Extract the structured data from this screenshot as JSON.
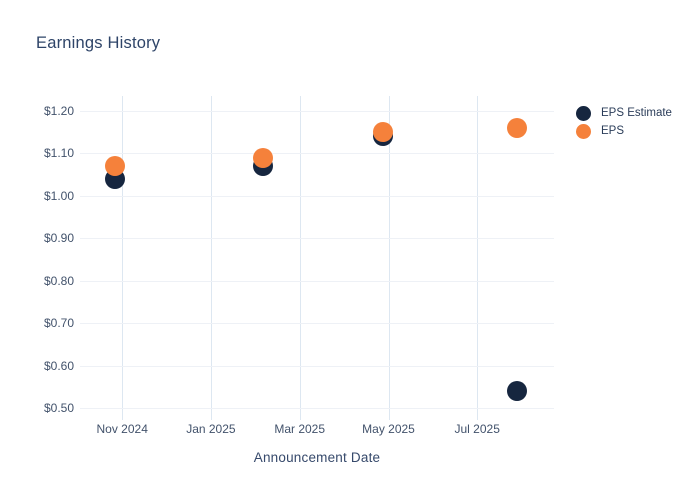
{
  "colors": {
    "background": "#ffffff",
    "title_text": "#2e4468",
    "tick_label_text": "#42526b",
    "axis_title_text": "#36496b",
    "grid_horizontal": "#eef1f6",
    "grid_vertical": "#dde7f1",
    "eps_estimate_marker": "#16263f",
    "eps_marker": "#f5813b"
  },
  "chart_data": {
    "type": "scatter",
    "title": "Earnings History",
    "xlabel": "Announcement Date",
    "ylabel": "",
    "grid": true,
    "legend_position": "outside-top-right",
    "xlim_months": [
      -0.95,
      9.73
    ],
    "ylim": [
      0.472,
      1.235
    ],
    "x_ticks": [
      {
        "label": "Nov 2024",
        "month": 0
      },
      {
        "label": "Jan 2025",
        "month": 2
      },
      {
        "label": "Mar 2025",
        "month": 4
      },
      {
        "label": "May 2025",
        "month": 6
      },
      {
        "label": "Jul 2025",
        "month": 8
      }
    ],
    "y_ticks": [
      {
        "label": "$1.20",
        "value": 1.2
      },
      {
        "label": "$1.10",
        "value": 1.1
      },
      {
        "label": "$1.00",
        "value": 1.0
      },
      {
        "label": "$0.90",
        "value": 0.9
      },
      {
        "label": "$0.80",
        "value": 0.8
      },
      {
        "label": "$0.70",
        "value": 0.7
      },
      {
        "label": "$0.60",
        "value": 0.6
      },
      {
        "label": "$0.50",
        "value": 0.5
      }
    ],
    "series": [
      {
        "name": "EPS Estimate",
        "color": "#16263f",
        "points": [
          {
            "x_months": -0.16,
            "approx_date": "2024-10-28",
            "value": 1.04
          },
          {
            "x_months": 3.18,
            "approx_date": "2025-02-05",
            "value": 1.07
          },
          {
            "x_months": 5.88,
            "approx_date": "2025-04-29",
            "value": 1.14
          },
          {
            "x_months": 8.9,
            "approx_date": "2025-07-29",
            "value": 0.54
          }
        ]
      },
      {
        "name": "EPS",
        "color": "#f5813b",
        "points": [
          {
            "x_months": -0.16,
            "approx_date": "2024-10-28",
            "value": 1.07
          },
          {
            "x_months": 3.18,
            "approx_date": "2025-02-05",
            "value": 1.09
          },
          {
            "x_months": 5.88,
            "approx_date": "2025-04-29",
            "value": 1.15
          },
          {
            "x_months": 8.9,
            "approx_date": "2025-07-29",
            "value": 1.16
          }
        ]
      }
    ]
  }
}
